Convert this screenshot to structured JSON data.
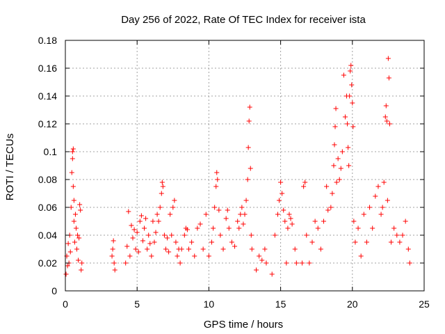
{
  "chart_data": {
    "type": "scatter",
    "title": "Day 256 of 2022, Rate Of TEC Index for receiver ista",
    "xlabel": "GPS time / hours",
    "ylabel": "ROTI / TECUs",
    "xlim": [
      0,
      25
    ],
    "ylim": [
      0,
      0.18
    ],
    "xticks": [
      0,
      5,
      10,
      15,
      20,
      25
    ],
    "xtick_labels": [
      "0",
      "5",
      "10",
      "15",
      "20",
      "25"
    ],
    "yticks": [
      0,
      0.02,
      0.04,
      0.06,
      0.08,
      0.1,
      0.12,
      0.14,
      0.16,
      0.18
    ],
    "ytick_labels": [
      "0",
      "0.02",
      "0.04",
      "0.06",
      "0.08",
      "0.1",
      "0.12",
      "0.14",
      "0.16",
      "0.18"
    ],
    "grid": true,
    "marker": "+",
    "marker_color": "#ff0000",
    "series": [
      {
        "name": "ROTI",
        "points": [
          [
            0.05,
            0.012
          ],
          [
            0.1,
            0.025
          ],
          [
            0.15,
            0.018
          ],
          [
            0.2,
            0.034
          ],
          [
            0.25,
            0.02
          ],
          [
            0.3,
            0.04
          ],
          [
            0.35,
            0.028
          ],
          [
            0.4,
            0.06
          ],
          [
            0.45,
            0.085
          ],
          [
            0.5,
            0.095
          ],
          [
            0.5,
            0.1
          ],
          [
            0.55,
            0.102
          ],
          [
            0.55,
            0.075
          ],
          [
            0.6,
            0.065
          ],
          [
            0.6,
            0.05
          ],
          [
            0.65,
            0.035
          ],
          [
            0.7,
            0.055
          ],
          [
            0.75,
            0.045
          ],
          [
            0.8,
            0.03
          ],
          [
            0.85,
            0.04
          ],
          [
            0.9,
            0.022
          ],
          [
            0.95,
            0.038
          ],
          [
            1.0,
            0.062
          ],
          [
            1.05,
            0.058
          ],
          [
            1.1,
            0.015
          ],
          [
            1.15,
            0.02
          ],
          [
            3.25,
            0.025
          ],
          [
            3.3,
            0.03
          ],
          [
            3.35,
            0.036
          ],
          [
            3.4,
            0.02
          ],
          [
            3.45,
            0.015
          ],
          [
            4.2,
            0.02
          ],
          [
            4.3,
            0.032
          ],
          [
            4.4,
            0.057
          ],
          [
            4.5,
            0.025
          ],
          [
            4.6,
            0.047
          ],
          [
            4.7,
            0.038
          ],
          [
            4.8,
            0.044
          ],
          [
            4.9,
            0.03
          ],
          [
            5.0,
            0.042
          ],
          [
            5.1,
            0.028
          ],
          [
            5.2,
            0.05
          ],
          [
            5.3,
            0.054
          ],
          [
            5.4,
            0.036
          ],
          [
            5.5,
            0.045
          ],
          [
            5.6,
            0.052
          ],
          [
            5.7,
            0.03
          ],
          [
            5.8,
            0.04
          ],
          [
            5.9,
            0.034
          ],
          [
            6.0,
            0.025
          ],
          [
            6.1,
            0.05
          ],
          [
            6.2,
            0.035
          ],
          [
            6.3,
            0.042
          ],
          [
            6.4,
            0.055
          ],
          [
            6.5,
            0.05
          ],
          [
            6.6,
            0.06
          ],
          [
            6.7,
            0.07
          ],
          [
            6.75,
            0.078
          ],
          [
            6.8,
            0.075
          ],
          [
            6.9,
            0.04
          ],
          [
            7.0,
            0.03
          ],
          [
            7.1,
            0.038
          ],
          [
            7.2,
            0.028
          ],
          [
            7.3,
            0.055
          ],
          [
            7.4,
            0.04
          ],
          [
            7.5,
            0.06
          ],
          [
            7.6,
            0.065
          ],
          [
            7.7,
            0.035
          ],
          [
            7.8,
            0.025
          ],
          [
            7.9,
            0.03
          ],
          [
            8.0,
            0.02
          ],
          [
            8.1,
            0.03
          ],
          [
            8.3,
            0.04
          ],
          [
            8.4,
            0.045
          ],
          [
            8.5,
            0.044
          ],
          [
            8.6,
            0.03
          ],
          [
            8.8,
            0.035
          ],
          [
            9.0,
            0.025
          ],
          [
            9.2,
            0.045
          ],
          [
            9.4,
            0.048
          ],
          [
            9.6,
            0.03
          ],
          [
            9.8,
            0.055
          ],
          [
            10.0,
            0.025
          ],
          [
            10.2,
            0.035
          ],
          [
            10.3,
            0.045
          ],
          [
            10.4,
            0.06
          ],
          [
            10.5,
            0.075
          ],
          [
            10.55,
            0.085
          ],
          [
            10.6,
            0.08
          ],
          [
            10.7,
            0.058
          ],
          [
            10.8,
            0.04
          ],
          [
            11.0,
            0.03
          ],
          [
            11.2,
            0.052
          ],
          [
            11.3,
            0.058
          ],
          [
            11.4,
            0.045
          ],
          [
            11.6,
            0.035
          ],
          [
            11.8,
            0.032
          ],
          [
            12.0,
            0.05
          ],
          [
            12.1,
            0.045
          ],
          [
            12.2,
            0.055
          ],
          [
            12.3,
            0.06
          ],
          [
            12.4,
            0.048
          ],
          [
            12.5,
            0.055
          ],
          [
            12.6,
            0.065
          ],
          [
            12.7,
            0.08
          ],
          [
            12.75,
            0.103
          ],
          [
            12.8,
            0.122
          ],
          [
            12.85,
            0.132
          ],
          [
            12.9,
            0.088
          ],
          [
            12.95,
            0.04
          ],
          [
            13.0,
            0.03
          ],
          [
            13.3,
            0.015
          ],
          [
            13.5,
            0.025
          ],
          [
            13.7,
            0.022
          ],
          [
            13.9,
            0.03
          ],
          [
            14.0,
            0.02
          ],
          [
            14.4,
            0.012
          ],
          [
            14.6,
            0.04
          ],
          [
            14.8,
            0.055
          ],
          [
            14.9,
            0.065
          ],
          [
            15.0,
            0.078
          ],
          [
            15.1,
            0.07
          ],
          [
            15.2,
            0.058
          ],
          [
            15.3,
            0.05
          ],
          [
            15.4,
            0.02
          ],
          [
            15.5,
            0.045
          ],
          [
            15.6,
            0.055
          ],
          [
            15.7,
            0.052
          ],
          [
            15.8,
            0.048
          ],
          [
            16.0,
            0.03
          ],
          [
            16.1,
            0.02
          ],
          [
            16.5,
            0.02
          ],
          [
            16.6,
            0.075
          ],
          [
            16.7,
            0.078
          ],
          [
            16.8,
            0.04
          ],
          [
            17.0,
            0.02
          ],
          [
            17.2,
            0.035
          ],
          [
            17.4,
            0.05
          ],
          [
            17.6,
            0.045
          ],
          [
            17.8,
            0.03
          ],
          [
            18.0,
            0.05
          ],
          [
            18.2,
            0.075
          ],
          [
            18.3,
            0.058
          ],
          [
            18.5,
            0.06
          ],
          [
            18.6,
            0.07
          ],
          [
            18.7,
            0.09
          ],
          [
            18.75,
            0.105
          ],
          [
            18.8,
            0.118
          ],
          [
            18.85,
            0.131
          ],
          [
            18.9,
            0.078
          ],
          [
            19.0,
            0.095
          ],
          [
            19.1,
            0.08
          ],
          [
            19.2,
            0.088
          ],
          [
            19.3,
            0.1
          ],
          [
            19.4,
            0.155
          ],
          [
            19.5,
            0.125
          ],
          [
            19.6,
            0.14
          ],
          [
            19.65,
            0.12
          ],
          [
            19.7,
            0.103
          ],
          [
            19.75,
            0.09
          ],
          [
            19.8,
            0.14
          ],
          [
            19.85,
            0.158
          ],
          [
            19.9,
            0.162
          ],
          [
            19.95,
            0.148
          ],
          [
            20.0,
            0.135
          ],
          [
            20.05,
            0.118
          ],
          [
            20.1,
            0.05
          ],
          [
            20.2,
            0.035
          ],
          [
            20.4,
            0.045
          ],
          [
            20.6,
            0.025
          ],
          [
            20.8,
            0.055
          ],
          [
            21.0,
            0.035
          ],
          [
            21.2,
            0.06
          ],
          [
            21.4,
            0.045
          ],
          [
            21.6,
            0.068
          ],
          [
            21.8,
            0.075
          ],
          [
            22.0,
            0.055
          ],
          [
            22.1,
            0.06
          ],
          [
            22.2,
            0.078
          ],
          [
            22.3,
            0.125
          ],
          [
            22.35,
            0.133
          ],
          [
            22.4,
            0.122
          ],
          [
            22.45,
            0.065
          ],
          [
            22.5,
            0.167
          ],
          [
            22.55,
            0.153
          ],
          [
            22.6,
            0.12
          ],
          [
            22.7,
            0.035
          ],
          [
            22.9,
            0.045
          ],
          [
            23.1,
            0.04
          ],
          [
            23.3,
            0.035
          ],
          [
            23.5,
            0.04
          ],
          [
            23.7,
            0.05
          ],
          [
            23.9,
            0.03
          ],
          [
            24.0,
            0.02
          ]
        ]
      }
    ]
  }
}
